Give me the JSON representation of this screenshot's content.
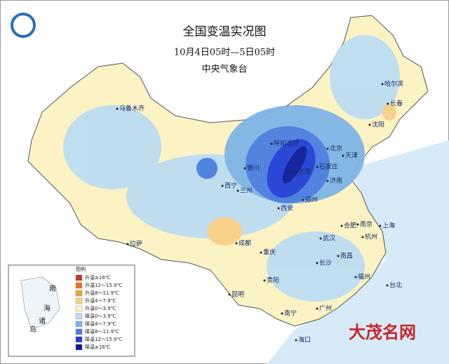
{
  "header": {
    "title": "全国变温实况图",
    "subtitle": "10月4日05时—5日05时",
    "agency": "中央气象台"
  },
  "legend": {
    "title": "图例",
    "items": [
      {
        "label": "升温≥16℃",
        "color": "#c0392b"
      },
      {
        "label": "升温12～15.9℃",
        "color": "#e8731f"
      },
      {
        "label": "升温8～11.9℃",
        "color": "#f3a13b"
      },
      {
        "label": "升温4～7.9℃",
        "color": "#f7cf86"
      },
      {
        "label": "升温0～3.9℃",
        "color": "#fbf3c4"
      },
      {
        "label": "降温0～3.9℃",
        "color": "#bcdcf2"
      },
      {
        "label": "降温4～7.9℃",
        "color": "#7fb4e6"
      },
      {
        "label": "降温8～11.9℃",
        "color": "#4a7ee0"
      },
      {
        "label": "降温12～15.9℃",
        "color": "#1f3fd6"
      },
      {
        "label": "降温≥16℃",
        "color": "#0a1a9a"
      }
    ]
  },
  "inset": {
    "labels": [
      "南",
      "海",
      "诸",
      "岛"
    ]
  },
  "cities": [
    "乌鲁木齐",
    "哈尔滨",
    "长春",
    "沈阳",
    "呼和浩特",
    "北京",
    "天津",
    "银川",
    "太原",
    "石家庄",
    "西宁",
    "兰州",
    "济南",
    "郑州",
    "西安",
    "拉萨",
    "成都",
    "合肥",
    "南京",
    "上海",
    "武汉",
    "杭州",
    "重庆",
    "长沙",
    "南昌",
    "福州",
    "贵阳",
    "台北",
    "昆明",
    "南宁",
    "广州",
    "海口"
  ],
  "watermark": "大茂名网"
}
